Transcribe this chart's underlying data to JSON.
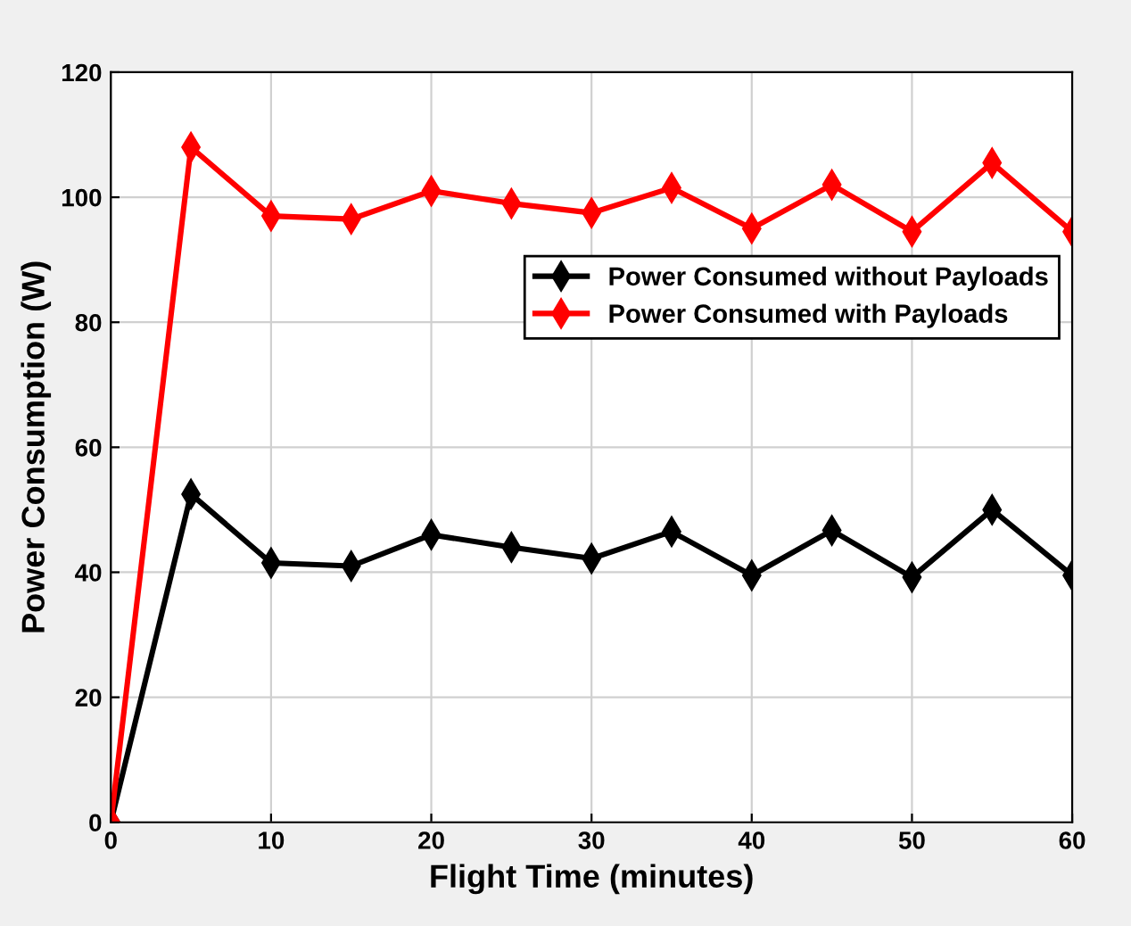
{
  "chart_data": {
    "type": "line",
    "xlabel": "Flight Time (minutes)",
    "ylabel": "Power Consumption (W)",
    "x": [
      0,
      5,
      10,
      15,
      20,
      25,
      30,
      35,
      40,
      45,
      50,
      55,
      60
    ],
    "series": [
      {
        "name": "Power Consumed without Payloads",
        "color": "#000000",
        "values": [
          0,
          52.5,
          41.5,
          41,
          46,
          44,
          42.2,
          46.5,
          39.5,
          46.7,
          39.2,
          50,
          39.5
        ]
      },
      {
        "name": "Power Consumed with Payloads",
        "color": "#ff0000",
        "values": [
          0,
          108,
          97,
          96.5,
          101,
          99,
          97.5,
          101.5,
          95,
          102,
          94.5,
          105.5,
          94.5
        ]
      }
    ],
    "xlim": [
      0,
      60
    ],
    "xticks": [
      0,
      10,
      20,
      30,
      40,
      50,
      60
    ],
    "ylim": [
      0,
      120
    ],
    "yticks": [
      0,
      20,
      40,
      60,
      80,
      100,
      120
    ],
    "grid": true,
    "legend": "right",
    "marker": "diamond",
    "line_style": "solid"
  }
}
